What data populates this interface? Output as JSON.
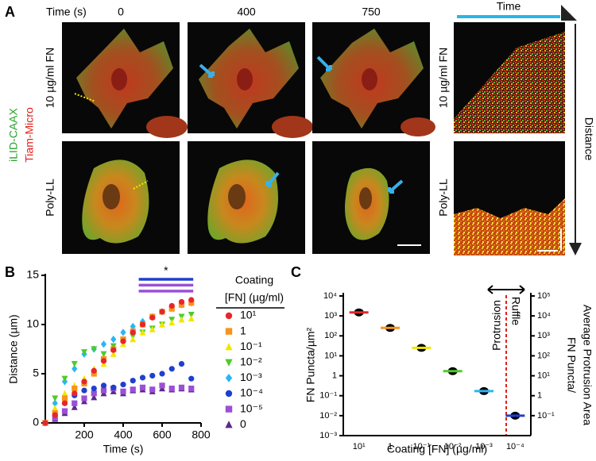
{
  "panel_a": {
    "label": "A",
    "time_label": "Time (s)",
    "times": [
      "0",
      "400",
      "750"
    ],
    "rows": [
      "10 µg/ml FN",
      "Poly-LL"
    ],
    "channels": [
      "iLID-CAAX",
      "Tiam-Micro"
    ],
    "kymograph": {
      "time_label": "Time",
      "distance_label": "Distance",
      "rows": [
        "10 µg/ml FN",
        "Poly-LL"
      ]
    }
  },
  "chart_data": [
    {
      "panel_label": "B",
      "type": "scatter",
      "x_label": "Time (s)",
      "y_label": "Distance (µm)",
      "legend_title": [
        "Coating",
        "[FN] (µg/ml)"
      ],
      "x": [
        0,
        50,
        100,
        150,
        200,
        250,
        300,
        350,
        400,
        450,
        500,
        550,
        600,
        650,
        700,
        750
      ],
      "series": [
        {
          "name": "10¹",
          "color": "#e8262a",
          "marker": "circle",
          "values": [
            0,
            0.8,
            2,
            3,
            4.2,
            5.3,
            6.3,
            7.4,
            8.3,
            9.2,
            10,
            10.7,
            11.3,
            11.9,
            12.3,
            12.5
          ]
        },
        {
          "name": "1",
          "color": "#f7941d",
          "marker": "square",
          "values": [
            0,
            1,
            2.5,
            3.5,
            4,
            5,
            6.5,
            7.5,
            8.5,
            9.3,
            10,
            10.8,
            11.3,
            11.6,
            12,
            12.2
          ]
        },
        {
          "name": "10⁻¹",
          "color": "#f2e600",
          "marker": "triangle-up",
          "values": [
            0,
            1.5,
            3,
            3.8,
            4.5,
            5.5,
            6,
            7,
            8,
            8.5,
            9.2,
            9.5,
            10,
            10.2,
            10.5,
            10.6
          ]
        },
        {
          "name": "10⁻²",
          "color": "#4ccc2b",
          "marker": "triangle-down",
          "values": [
            0,
            2.5,
            4.5,
            6,
            7.2,
            7.5,
            7,
            7.8,
            8.3,
            8.8,
            9.2,
            9.6,
            10,
            10.5,
            10.8,
            11
          ]
        },
        {
          "name": "10⁻³",
          "color": "#29b6f6",
          "marker": "diamond",
          "values": [
            0,
            2,
            4.2,
            5.5,
            7,
            7.5,
            8,
            8.5,
            9.2,
            9.8,
            10.3,
            10.8,
            11.3,
            11.8,
            12,
            12.2
          ]
        },
        {
          "name": "10⁻⁴",
          "color": "#1f3fcf",
          "marker": "circle",
          "values": [
            0,
            1,
            2,
            2.8,
            3.3,
            3.5,
            3.8,
            3.6,
            3.9,
            4.3,
            4.6,
            4.8,
            5,
            5.5,
            6,
            4.5
          ]
        },
        {
          "name": "10⁻⁵",
          "color": "#9b4fd6",
          "marker": "square",
          "values": [
            0,
            0.5,
            1.2,
            2,
            2.5,
            3,
            3.3,
            3.5,
            3.2,
            3.4,
            3.6,
            3.4,
            3.8,
            3.5,
            3.6,
            3.5
          ]
        },
        {
          "name": "0",
          "color": "#5b2a86",
          "marker": "triangle-up",
          "values": [
            0,
            0.4,
            1,
            1.6,
            2.2,
            2.6,
            3,
            3.2,
            3,
            3.3,
            3.4,
            3.2,
            3.5,
            3.4,
            3.5,
            3.4
          ]
        }
      ],
      "xlim": [
        0,
        800
      ],
      "xticks": [
        200,
        400,
        600,
        800
      ],
      "ylim": [
        0,
        15
      ],
      "yticks": [
        0,
        5,
        10,
        15
      ],
      "significance": {
        "label": "*",
        "x_range": [
          480,
          760
        ],
        "levels": [
          14.6,
          14.0,
          13.4
        ],
        "colors": [
          "#1f3fcf",
          "#9b4fd6",
          "#9b4fd6"
        ]
      }
    },
    {
      "panel_label": "C",
      "type": "dot",
      "x_label": "Coating [FN] (µg/ml)",
      "y_label": "FN Puncta/µm²",
      "y2_label": [
        "FN Puncta/",
        "Average Protrusion Area"
      ],
      "categories": [
        "10¹",
        "1",
        "10⁻¹",
        "10⁻²",
        "10⁻³",
        "10⁻⁴"
      ],
      "values": [
        1500,
        250,
        25,
        1.7,
        0.17,
        0.01
      ],
      "colors": [
        "#e8262a",
        "#f7941d",
        "#f2e600",
        "#4ccc2b",
        "#29b6f6",
        "#1f3fcf"
      ],
      "log_y": true,
      "ylim": [
        0.001,
        10000
      ],
      "yticks": [
        {
          "value": 10000,
          "label": "10⁴"
        },
        {
          "value": 1000,
          "label": "10³"
        },
        {
          "value": 100,
          "label": "10²"
        },
        {
          "value": 10,
          "label": "10¹"
        },
        1,
        {
          "value": 0.1,
          "label": "10⁻¹"
        },
        {
          "value": 0.01,
          "label": "10⁻²"
        },
        {
          "value": 0.001,
          "label": "10⁻³"
        }
      ],
      "y2lim": [
        0.01,
        100000
      ],
      "y2ticks": [
        {
          "value": 100000,
          "label": "10⁵"
        },
        {
          "value": 10000,
          "label": "10⁴"
        },
        {
          "value": 1000,
          "label": "10³"
        },
        {
          "value": 100,
          "label": "10²"
        },
        {
          "value": 10,
          "label": "10¹"
        },
        1,
        {
          "value": 0.1,
          "label": "10⁻¹"
        }
      ],
      "regions": [
        "Protrusion",
        "Ruffle"
      ]
    }
  ]
}
